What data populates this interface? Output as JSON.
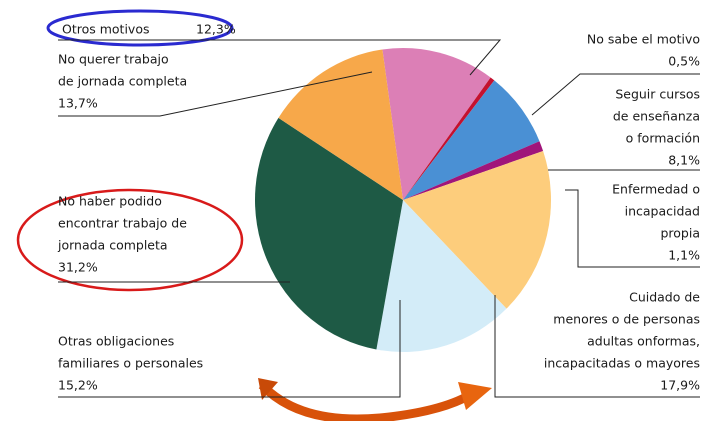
{
  "chart_data": {
    "type": "pie",
    "categories": [
      [
        "Otros motivos"
      ],
      [
        "No sabe el motivo"
      ],
      [
        "Seguir cursos",
        "de enseñanza",
        "o formación"
      ],
      [
        "Enfermedad o",
        "incapacidad",
        "propia"
      ],
      [
        "Cuidado de",
        "menores o de personas",
        "adultas onformas,",
        "incapacitadas o mayores"
      ],
      [
        "Otras obligaciones",
        "familiares o personales"
      ],
      [
        "No haber podido",
        "encontrar trabajo de",
        "jornada completa"
      ],
      [
        "No querer trabajo",
        "de jornada completa"
      ]
    ],
    "values": [
      12.3,
      0.5,
      8.1,
      1.1,
      17.9,
      15.2,
      31.2,
      13.7
    ],
    "value_labels": [
      "12,3%",
      "0,5%",
      "8,1%",
      "1,1%",
      "17,9%",
      "15,2%",
      "31,2%",
      "13,7%"
    ],
    "colors": [
      "#dc7fb6",
      "#c4112f",
      "#4a90d4",
      "#a0157a",
      "#fdcd7c",
      "#d3ecf8",
      "#1e5a45",
      "#f7a84a"
    ]
  }
}
